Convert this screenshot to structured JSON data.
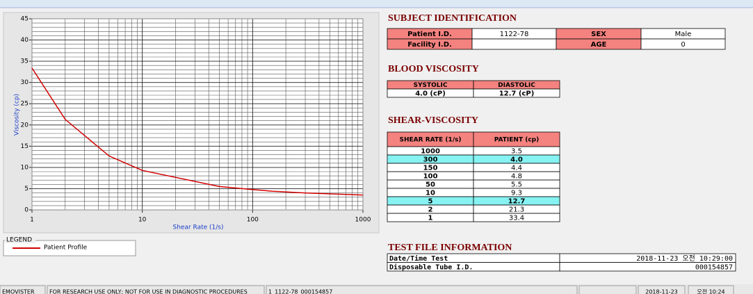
{
  "chart_data": {
    "type": "line",
    "x_label": "Shear Rate (1/s)",
    "y_label": "Viscosity (cp)",
    "x": [
      1,
      2,
      5,
      10,
      50,
      100,
      150,
      300,
      1000
    ],
    "series": [
      {
        "name": "Patient Profile",
        "color": "#d40000",
        "values": [
          33.4,
          21.3,
          12.7,
          9.3,
          5.5,
          4.8,
          4.4,
          4.0,
          3.5
        ]
      }
    ],
    "xlim": [
      1,
      1000
    ],
    "ylim": [
      0,
      45
    ],
    "xticks": [
      1,
      10,
      100,
      1000
    ],
    "yticks": [
      0,
      5,
      10,
      15,
      20,
      25,
      30,
      35,
      40,
      45
    ],
    "xminorticks": [
      2,
      3,
      4,
      5,
      6,
      7,
      8,
      9,
      20,
      30,
      40,
      50,
      60,
      70,
      80,
      90,
      200,
      300,
      400,
      500,
      600,
      700,
      800,
      900
    ],
    "yminorticks": [
      1,
      2,
      3,
      4,
      6,
      7,
      8,
      9,
      11,
      12,
      13,
      14,
      16,
      17,
      18,
      19,
      21,
      22,
      23,
      24,
      26,
      27,
      28,
      29,
      31,
      32,
      33,
      34,
      36,
      37,
      38,
      39,
      41,
      42,
      43,
      44
    ],
    "log_x": true,
    "grid": true,
    "legend_title": "LEGEND"
  },
  "subject": {
    "title": "SUBJECT IDENTIFICATION",
    "rows": [
      [
        "Patient I.D.",
        "1122-78",
        "SEX",
        "Male"
      ],
      [
        "Facility I.D.",
        null,
        "AGE",
        "0"
      ]
    ]
  },
  "blood_viscosity": {
    "title": "BLOOD VISCOSITY",
    "headers": [
      "SYSTOLIC",
      "DIASTOLIC"
    ],
    "values": [
      "4.0 (cP)",
      "12.7 (cP)"
    ]
  },
  "shear_viscosity": {
    "title": "SHEAR-VISCOSITY",
    "headers": [
      "SHEAR RATE (1/s)",
      "PATIENT (cp)"
    ],
    "rows": [
      [
        "1000",
        "3.5"
      ],
      [
        "300",
        "4.0"
      ],
      [
        "150",
        "4.4"
      ],
      [
        "100",
        "4.8"
      ],
      [
        "50",
        "5.5"
      ],
      [
        "10",
        "9.3"
      ],
      [
        "5",
        "12.7"
      ],
      [
        "2",
        "21.3"
      ],
      [
        "1",
        "33.4"
      ]
    ],
    "highlight_rows": [
      1,
      6
    ]
  },
  "test_file": {
    "title": "TEST FILE INFORMATION",
    "rows": [
      [
        "Date/Time Test",
        "2018-11-23  오전 10:29:00"
      ],
      [
        "Disposable Tube I.D.",
        "000154857"
      ]
    ]
  },
  "status_bar": [
    "EMOVISTER",
    "FOR RESEARCH USE ONLY; NOT FOR USE IN DIAGNOSTIC PROCEDURES",
    "1_1122-78_000154857",
    "2018-11-23",
    "오전 10:24"
  ]
}
